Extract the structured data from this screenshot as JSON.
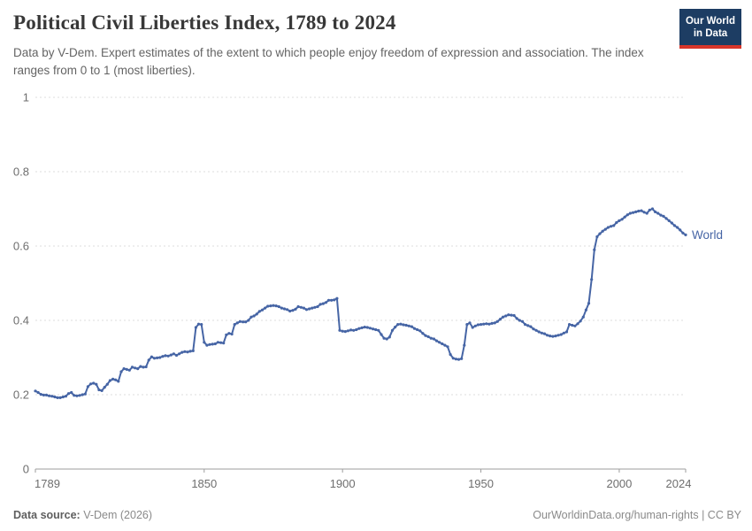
{
  "header": {
    "title": "Political Civil Liberties Index, 1789 to 2024",
    "subtitle": "Data by V-Dem. Expert estimates of the extent to which people enjoy freedom of expression and association. The index ranges from 0 to 1 (most liberties).",
    "logo": {
      "line1": "Our World",
      "line2": "in Data",
      "bg_color": "#1d3d63",
      "accent_color": "#d8352a"
    }
  },
  "chart_data": {
    "type": "line",
    "title": "Political Civil Liberties Index, 1789 to 2024",
    "xlabel": "",
    "ylabel": "",
    "xlim": [
      1789,
      2024
    ],
    "ylim": [
      0,
      1
    ],
    "x_ticks": [
      1789,
      1850,
      1900,
      1950,
      2000,
      2024
    ],
    "x_tick_labels": [
      "1789",
      "1850",
      "1900",
      "1950",
      "2000",
      "2024"
    ],
    "y_ticks": [
      0,
      0.2,
      0.4,
      0.6,
      0.8,
      1
    ],
    "y_tick_labels": [
      "0",
      "0.2",
      "0.4",
      "0.6",
      "0.8",
      "1"
    ],
    "grid": "horizontal-dashed",
    "legend_position": "end-of-line-label",
    "colors": {
      "line": "#4665a5",
      "grid": "#dcdcdc",
      "axis": "#9e9e9e",
      "tick_text": "#6e6e6e"
    },
    "series": [
      {
        "name": "World",
        "color": "#4665a5",
        "points": [
          [
            1789,
            0.21
          ],
          [
            1790,
            0.206
          ],
          [
            1791,
            0.201
          ],
          [
            1792,
            0.199
          ],
          [
            1793,
            0.199
          ],
          [
            1794,
            0.197
          ],
          [
            1795,
            0.196
          ],
          [
            1796,
            0.194
          ],
          [
            1797,
            0.192
          ],
          [
            1798,
            0.192
          ],
          [
            1799,
            0.194
          ],
          [
            1800,
            0.196
          ],
          [
            1801,
            0.203
          ],
          [
            1802,
            0.206
          ],
          [
            1803,
            0.198
          ],
          [
            1804,
            0.197
          ],
          [
            1805,
            0.198
          ],
          [
            1806,
            0.2
          ],
          [
            1807,
            0.202
          ],
          [
            1808,
            0.222
          ],
          [
            1809,
            0.229
          ],
          [
            1810,
            0.231
          ],
          [
            1811,
            0.228
          ],
          [
            1812,
            0.213
          ],
          [
            1813,
            0.211
          ],
          [
            1814,
            0.22
          ],
          [
            1815,
            0.228
          ],
          [
            1816,
            0.238
          ],
          [
            1817,
            0.242
          ],
          [
            1818,
            0.24
          ],
          [
            1819,
            0.236
          ],
          [
            1820,
            0.262
          ],
          [
            1821,
            0.27
          ],
          [
            1822,
            0.268
          ],
          [
            1823,
            0.266
          ],
          [
            1824,
            0.274
          ],
          [
            1825,
            0.272
          ],
          [
            1826,
            0.27
          ],
          [
            1827,
            0.276
          ],
          [
            1828,
            0.274
          ],
          [
            1829,
            0.275
          ],
          [
            1830,
            0.293
          ],
          [
            1831,
            0.302
          ],
          [
            1832,
            0.298
          ],
          [
            1833,
            0.299
          ],
          [
            1834,
            0.3
          ],
          [
            1835,
            0.303
          ],
          [
            1836,
            0.305
          ],
          [
            1837,
            0.304
          ],
          [
            1838,
            0.307
          ],
          [
            1839,
            0.31
          ],
          [
            1840,
            0.306
          ],
          [
            1841,
            0.31
          ],
          [
            1842,
            0.314
          ],
          [
            1843,
            0.316
          ],
          [
            1844,
            0.315
          ],
          [
            1845,
            0.317
          ],
          [
            1846,
            0.318
          ],
          [
            1847,
            0.381
          ],
          [
            1848,
            0.39
          ],
          [
            1849,
            0.389
          ],
          [
            1850,
            0.341
          ],
          [
            1851,
            0.333
          ],
          [
            1852,
            0.335
          ],
          [
            1853,
            0.336
          ],
          [
            1854,
            0.337
          ],
          [
            1855,
            0.341
          ],
          [
            1856,
            0.34
          ],
          [
            1857,
            0.339
          ],
          [
            1858,
            0.361
          ],
          [
            1859,
            0.365
          ],
          [
            1860,
            0.363
          ],
          [
            1861,
            0.389
          ],
          [
            1862,
            0.393
          ],
          [
            1863,
            0.397
          ],
          [
            1864,
            0.396
          ],
          [
            1865,
            0.396
          ],
          [
            1866,
            0.4
          ],
          [
            1867,
            0.409
          ],
          [
            1868,
            0.412
          ],
          [
            1869,
            0.417
          ],
          [
            1870,
            0.424
          ],
          [
            1871,
            0.428
          ],
          [
            1872,
            0.433
          ],
          [
            1873,
            0.438
          ],
          [
            1874,
            0.439
          ],
          [
            1875,
            0.44
          ],
          [
            1876,
            0.439
          ],
          [
            1877,
            0.437
          ],
          [
            1878,
            0.433
          ],
          [
            1879,
            0.431
          ],
          [
            1880,
            0.429
          ],
          [
            1881,
            0.425
          ],
          [
            1882,
            0.427
          ],
          [
            1883,
            0.43
          ],
          [
            1884,
            0.437
          ],
          [
            1885,
            0.435
          ],
          [
            1886,
            0.433
          ],
          [
            1887,
            0.429
          ],
          [
            1888,
            0.431
          ],
          [
            1889,
            0.433
          ],
          [
            1890,
            0.435
          ],
          [
            1891,
            0.437
          ],
          [
            1892,
            0.443
          ],
          [
            1893,
            0.445
          ],
          [
            1894,
            0.448
          ],
          [
            1895,
            0.454
          ],
          [
            1896,
            0.454
          ],
          [
            1897,
            0.455
          ],
          [
            1898,
            0.459
          ],
          [
            1899,
            0.373
          ],
          [
            1900,
            0.371
          ],
          [
            1901,
            0.37
          ],
          [
            1902,
            0.372
          ],
          [
            1903,
            0.374
          ],
          [
            1904,
            0.373
          ],
          [
            1905,
            0.375
          ],
          [
            1906,
            0.378
          ],
          [
            1907,
            0.38
          ],
          [
            1908,
            0.382
          ],
          [
            1909,
            0.381
          ],
          [
            1910,
            0.379
          ],
          [
            1911,
            0.377
          ],
          [
            1912,
            0.375
          ],
          [
            1913,
            0.373
          ],
          [
            1914,
            0.362
          ],
          [
            1915,
            0.352
          ],
          [
            1916,
            0.35
          ],
          [
            1917,
            0.355
          ],
          [
            1918,
            0.373
          ],
          [
            1919,
            0.382
          ],
          [
            1920,
            0.389
          ],
          [
            1921,
            0.39
          ],
          [
            1922,
            0.388
          ],
          [
            1923,
            0.387
          ],
          [
            1924,
            0.385
          ],
          [
            1925,
            0.383
          ],
          [
            1926,
            0.378
          ],
          [
            1927,
            0.375
          ],
          [
            1928,
            0.372
          ],
          [
            1929,
            0.365
          ],
          [
            1930,
            0.359
          ],
          [
            1931,
            0.356
          ],
          [
            1932,
            0.352
          ],
          [
            1933,
            0.35
          ],
          [
            1934,
            0.345
          ],
          [
            1935,
            0.341
          ],
          [
            1936,
            0.337
          ],
          [
            1937,
            0.333
          ],
          [
            1938,
            0.329
          ],
          [
            1939,
            0.308
          ],
          [
            1940,
            0.298
          ],
          [
            1941,
            0.296
          ],
          [
            1942,
            0.295
          ],
          [
            1943,
            0.297
          ],
          [
            1944,
            0.333
          ],
          [
            1945,
            0.389
          ],
          [
            1946,
            0.393
          ],
          [
            1947,
            0.381
          ],
          [
            1948,
            0.385
          ],
          [
            1949,
            0.388
          ],
          [
            1950,
            0.389
          ],
          [
            1951,
            0.39
          ],
          [
            1952,
            0.391
          ],
          [
            1953,
            0.39
          ],
          [
            1954,
            0.392
          ],
          [
            1955,
            0.393
          ],
          [
            1956,
            0.397
          ],
          [
            1957,
            0.403
          ],
          [
            1958,
            0.409
          ],
          [
            1959,
            0.412
          ],
          [
            1960,
            0.415
          ],
          [
            1961,
            0.414
          ],
          [
            1962,
            0.413
          ],
          [
            1963,
            0.405
          ],
          [
            1964,
            0.4
          ],
          [
            1965,
            0.397
          ],
          [
            1966,
            0.389
          ],
          [
            1967,
            0.386
          ],
          [
            1968,
            0.383
          ],
          [
            1969,
            0.377
          ],
          [
            1970,
            0.373
          ],
          [
            1971,
            0.369
          ],
          [
            1972,
            0.366
          ],
          [
            1973,
            0.364
          ],
          [
            1974,
            0.36
          ],
          [
            1975,
            0.358
          ],
          [
            1976,
            0.357
          ],
          [
            1977,
            0.358
          ],
          [
            1978,
            0.36
          ],
          [
            1979,
            0.362
          ],
          [
            1980,
            0.366
          ],
          [
            1981,
            0.369
          ],
          [
            1982,
            0.389
          ],
          [
            1983,
            0.387
          ],
          [
            1984,
            0.385
          ],
          [
            1985,
            0.391
          ],
          [
            1986,
            0.398
          ],
          [
            1987,
            0.409
          ],
          [
            1988,
            0.428
          ],
          [
            1989,
            0.446
          ],
          [
            1990,
            0.51
          ],
          [
            1991,
            0.59
          ],
          [
            1992,
            0.625
          ],
          [
            1993,
            0.633
          ],
          [
            1994,
            0.64
          ],
          [
            1995,
            0.645
          ],
          [
            1996,
            0.65
          ],
          [
            1997,
            0.653
          ],
          [
            1998,
            0.655
          ],
          [
            1999,
            0.663
          ],
          [
            2000,
            0.668
          ],
          [
            2001,
            0.672
          ],
          [
            2002,
            0.678
          ],
          [
            2003,
            0.684
          ],
          [
            2004,
            0.688
          ],
          [
            2005,
            0.69
          ],
          [
            2006,
            0.692
          ],
          [
            2007,
            0.694
          ],
          [
            2008,
            0.695
          ],
          [
            2009,
            0.691
          ],
          [
            2010,
            0.688
          ],
          [
            2011,
            0.697
          ],
          [
            2012,
            0.7
          ],
          [
            2013,
            0.692
          ],
          [
            2014,
            0.688
          ],
          [
            2015,
            0.683
          ],
          [
            2016,
            0.68
          ],
          [
            2017,
            0.674
          ],
          [
            2018,
            0.668
          ],
          [
            2019,
            0.662
          ],
          [
            2020,
            0.655
          ],
          [
            2021,
            0.65
          ],
          [
            2022,
            0.643
          ],
          [
            2023,
            0.635
          ],
          [
            2024,
            0.63
          ]
        ]
      }
    ]
  },
  "footer": {
    "source_label": "Data source:",
    "source_value": " V-Dem (2026)",
    "license": "OurWorldinData.org/human-rights | CC BY"
  }
}
